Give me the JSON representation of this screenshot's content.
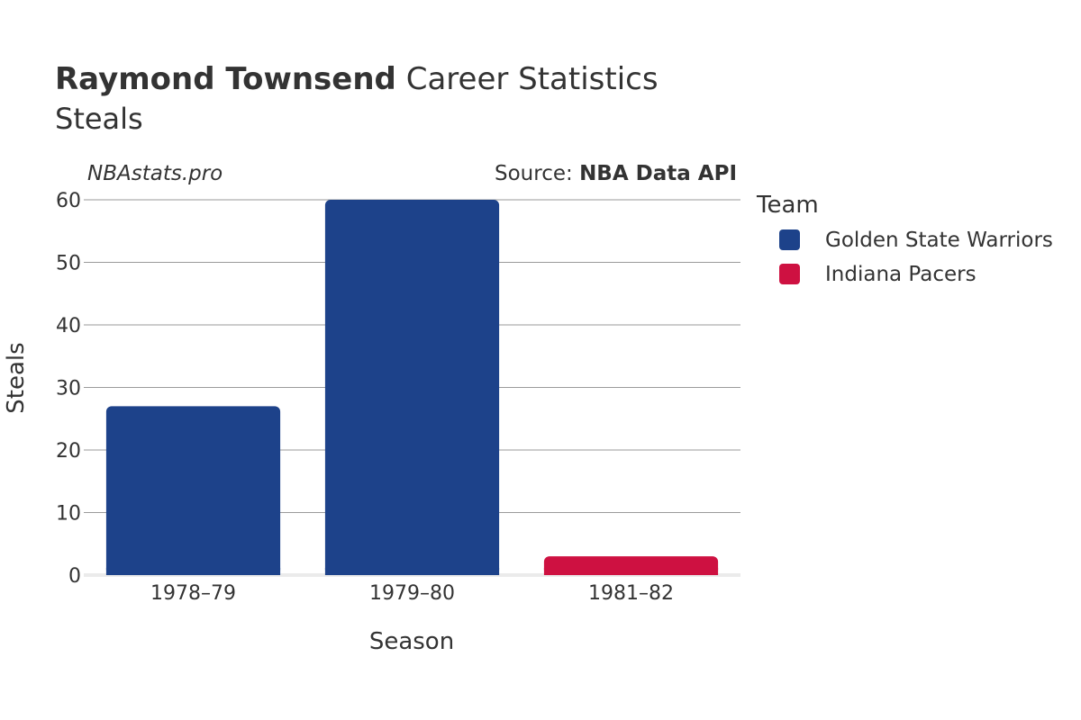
{
  "title": {
    "player_name": "Raymond Townsend",
    "suffix": " Career Statistics",
    "subtitle": "Steals"
  },
  "watermark": "NBAstats.pro",
  "source": {
    "prefix": "Source: ",
    "name": "NBA Data API"
  },
  "legend": {
    "title": "Team",
    "items": [
      {
        "name": "Golden State Warriors",
        "color": "#1d428a"
      },
      {
        "name": "Indiana Pacers",
        "color": "#ce1141"
      }
    ]
  },
  "chart_data": {
    "type": "bar",
    "xlabel": "Season",
    "ylabel": "Steals",
    "categories": [
      "1978–79",
      "1979–80",
      "1981–82"
    ],
    "ylim": [
      0,
      60
    ],
    "yticks": [
      0,
      10,
      20,
      30,
      40,
      50,
      60
    ],
    "grid": true,
    "legend_position": "right",
    "bars": [
      {
        "category": "1978–79",
        "value": 27,
        "team": "Golden State Warriors",
        "color": "#1d428a"
      },
      {
        "category": "1979–80",
        "value": 60,
        "team": "Golden State Warriors",
        "color": "#1d428a"
      },
      {
        "category": "1981–82",
        "value": 3,
        "team": "Indiana Pacers",
        "color": "#ce1141"
      }
    ]
  }
}
